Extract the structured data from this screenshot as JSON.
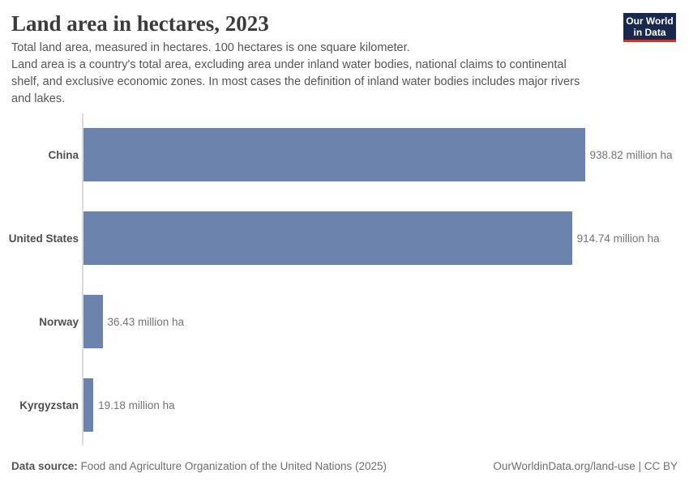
{
  "header": {
    "title": "Land area in hectares, 2023",
    "subtitle": "Total land area, measured in hectares. 100 hectares is one square kilometer.\nLand area is a country's total area, excluding area under inland water bodies, national claims to continental\nshelf, and exclusive economic zones. In most cases the definition of inland water bodies includes major rivers\nand lakes.",
    "logo": {
      "line1": "Our World",
      "line2": "in Data"
    }
  },
  "chart_data": {
    "type": "bar",
    "orientation": "horizontal",
    "title": "Land area in hectares, 2023",
    "unit": "million ha",
    "categories": [
      "China",
      "United States",
      "Norway",
      "Kyrgyzstan"
    ],
    "values": [
      938.82,
      914.74,
      36.43,
      19.18
    ],
    "value_labels": [
      "938.82 million ha",
      "914.74 million ha",
      "36.43 million ha",
      "19.18 million ha"
    ],
    "xlim": [
      0,
      938.82
    ],
    "grid": false,
    "legend": false
  },
  "footer": {
    "datasource_label": "Data source:",
    "datasource_text": " Food and Agriculture Organization of the United Nations (2025)",
    "credit": "OurWorldinData.org/land-use | CC BY"
  },
  "colors": {
    "bar": "#6c84ad",
    "logo_navy": "#18294d",
    "logo_red": "#dc2d27"
  }
}
